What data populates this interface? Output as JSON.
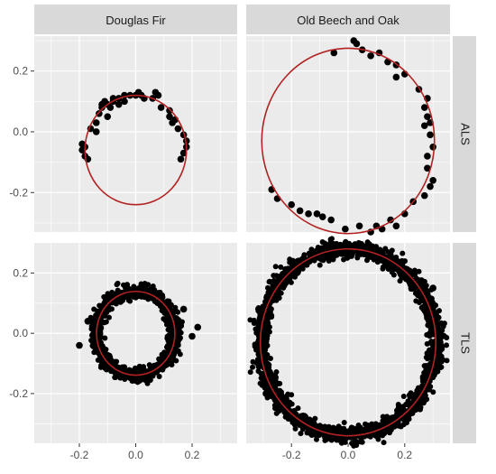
{
  "chart_data": {
    "type": "scatter",
    "title": "",
    "xlabel": "",
    "ylabel": "",
    "xlim": [
      -0.36,
      0.36
    ],
    "facet_columns": [
      "Douglas Fir",
      "Old Beech and Oak"
    ],
    "facet_rows": [
      "ALS",
      "TLS"
    ],
    "ylim_by_row": {
      "ALS": [
        -0.33,
        0.315
      ],
      "TLS": [
        -0.365,
        0.3
      ]
    },
    "x_ticks": [
      -0.2,
      0.0,
      0.2
    ],
    "x_tick_labels": [
      "-0.2",
      "0.0",
      "0.2"
    ],
    "y_ticks": [
      -0.2,
      0.0,
      0.2
    ],
    "y_tick_labels": [
      "-0.2",
      "0.0",
      "0.2"
    ],
    "grid": true,
    "colors": {
      "panel_background": "#ebebeb",
      "grid_line": "#ffffff",
      "strip_background": "#d9d9d9",
      "point": "#000000",
      "fitted_circle": "#b22222"
    },
    "panels": [
      {
        "column": "Douglas Fir",
        "row": "ALS",
        "fitted_circle": {
          "cx": 0.0,
          "cy": -0.06,
          "r": 0.18
        },
        "points": [
          [
            -0.19,
            -0.04
          ],
          [
            -0.19,
            -0.06
          ],
          [
            -0.18,
            -0.05
          ],
          [
            -0.17,
            -0.09
          ],
          [
            -0.18,
            -0.08
          ],
          [
            -0.16,
            0.01
          ],
          [
            -0.14,
            0.03
          ],
          [
            -0.13,
            0.06
          ],
          [
            -0.12,
            0.09
          ],
          [
            -0.12,
            0.08
          ],
          [
            -0.11,
            0.1
          ],
          [
            -0.1,
            0.09
          ],
          [
            -0.1,
            0.05
          ],
          [
            -0.09,
            0.08
          ],
          [
            -0.08,
            0.1
          ],
          [
            -0.08,
            0.11
          ],
          [
            -0.06,
            0.11
          ],
          [
            -0.04,
            0.12
          ],
          [
            -0.04,
            0.1
          ],
          [
            -0.02,
            0.12
          ],
          [
            0.0,
            0.12
          ],
          [
            0.01,
            0.13
          ],
          [
            0.02,
            0.12
          ],
          [
            0.03,
            0.11
          ],
          [
            0.06,
            0.11
          ],
          [
            0.07,
            0.13
          ],
          [
            0.08,
            0.12
          ],
          [
            0.09,
            0.08
          ],
          [
            0.12,
            0.07
          ],
          [
            0.12,
            0.05
          ],
          [
            0.13,
            0.03
          ],
          [
            0.15,
            0.01
          ],
          [
            0.17,
            -0.01
          ],
          [
            0.18,
            -0.03
          ],
          [
            0.18,
            -0.05
          ],
          [
            0.17,
            -0.07
          ],
          [
            0.16,
            -0.09
          ],
          [
            -0.14,
            0.0
          ],
          [
            0.14,
            0.04
          ],
          [
            -0.06,
            0.09
          ]
        ]
      },
      {
        "column": "Old Beech and Oak",
        "row": "ALS",
        "fitted_circle": {
          "cx": 0.0,
          "cy": -0.03,
          "r": 0.305
        },
        "points": [
          [
            -0.27,
            -0.19
          ],
          [
            -0.25,
            -0.22
          ],
          [
            -0.2,
            -0.24
          ],
          [
            -0.17,
            -0.26
          ],
          [
            -0.14,
            -0.27
          ],
          [
            -0.11,
            -0.27
          ],
          [
            -0.09,
            -0.28
          ],
          [
            -0.06,
            -0.29
          ],
          [
            -0.01,
            -0.32
          ],
          [
            0.04,
            -0.31
          ],
          [
            0.08,
            -0.33
          ],
          [
            0.1,
            -0.31
          ],
          [
            0.12,
            -0.32
          ],
          [
            0.15,
            -0.29
          ],
          [
            0.17,
            -0.31
          ],
          [
            0.2,
            -0.27
          ],
          [
            0.23,
            -0.23
          ],
          [
            0.27,
            -0.21
          ],
          [
            0.29,
            -0.18
          ],
          [
            0.3,
            -0.16
          ],
          [
            0.28,
            -0.12
          ],
          [
            0.28,
            -0.08
          ],
          [
            0.3,
            -0.05
          ],
          [
            0.29,
            -0.01
          ],
          [
            0.29,
            0.03
          ],
          [
            0.28,
            0.05
          ],
          [
            0.27,
            0.02
          ],
          [
            0.27,
            0.08
          ],
          [
            0.28,
            0.11
          ],
          [
            0.25,
            0.14
          ],
          [
            0.2,
            0.19
          ],
          [
            0.17,
            0.22
          ],
          [
            0.14,
            0.23
          ],
          [
            0.11,
            0.26
          ],
          [
            0.08,
            0.25
          ],
          [
            0.05,
            0.27
          ],
          [
            0.03,
            0.29
          ],
          [
            0.02,
            0.3
          ],
          [
            -0.05,
            0.26
          ],
          [
            0.17,
            0.18
          ]
        ]
      },
      {
        "column": "Douglas Fir",
        "row": "TLS",
        "fitted_circle": {
          "cx": 0.0,
          "cy": 0.0,
          "r": 0.139
        },
        "dense_ring": {
          "cx": 0.0,
          "cy": 0.0,
          "r": 0.14,
          "spread": 0.012,
          "n": 900
        },
        "points": [
          [
            -0.2,
            -0.04
          ],
          [
            0.22,
            0.02
          ],
          [
            0.2,
            -0.01
          ],
          [
            -0.17,
            0.04
          ],
          [
            0.17,
            0.08
          ]
        ]
      },
      {
        "column": "Old Beech and Oak",
        "row": "TLS",
        "fitted_circle": {
          "cx": 0.0,
          "cy": -0.03,
          "r": 0.31
        },
        "dense_ring": {
          "cx": 0.0,
          "cy": -0.03,
          "r": 0.31,
          "spread": 0.014,
          "n": 1800
        },
        "points": [
          [
            -0.31,
            0.05
          ],
          [
            0.32,
            -0.1
          ],
          [
            0.3,
            0.15
          ],
          [
            -0.29,
            -0.2
          ]
        ]
      }
    ]
  }
}
